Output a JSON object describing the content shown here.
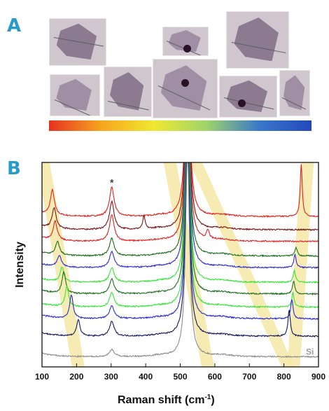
{
  "colors": {
    "panel_letter": "#2a9bc6",
    "substrate": "#cfc6ce",
    "flake": "#a08fa4",
    "flake_dark": "#8c7a91",
    "highlight_band": "#f5e9a6",
    "color_bar_stops": [
      "#e53222",
      "#f7a51e",
      "#efe82f",
      "#9fd36a",
      "#3a78c9",
      "#2448bb"
    ]
  },
  "panel_a": {
    "letter": "A"
  },
  "panel_b": {
    "letter": "B"
  },
  "chart_data": {
    "type": "line",
    "xlabel": "Raman shift (cm",
    "xlabel_sup": "-1",
    "xlabel_close": ")",
    "ylabel": "Intensity",
    "xlim": [
      100,
      900
    ],
    "ylim": [
      0,
      14
    ],
    "x_ticks": [
      "100",
      "200",
      "300",
      "400",
      "500",
      "600",
      "700",
      "800",
      "900"
    ],
    "annotations": [
      {
        "text": "*",
        "x": 302,
        "y": 12.1
      },
      {
        "text": "Si",
        "x": 875,
        "y": 0.55
      }
    ],
    "highlight_bands": [
      {
        "x_top": 104,
        "x_bottom": 205
      },
      {
        "x_top": 470,
        "x_bottom": 580
      },
      {
        "x_top": 545,
        "x_bottom": 812
      },
      {
        "x_top": 868,
        "x_bottom": 828
      }
    ],
    "series": [
      {
        "color": "#e61e1e",
        "baseline": 10.0,
        "peaks": [
          [
            130,
            1.7,
            7
          ],
          [
            302,
            2.0,
            8
          ],
          [
            850,
            3.6,
            3.5
          ]
        ]
      },
      {
        "color": "#7a1212",
        "baseline": 9.1,
        "peaks": [
          [
            135,
            1.4,
            7
          ],
          [
            302,
            1.9,
            8
          ],
          [
            395,
            0.9,
            4
          ]
        ]
      },
      {
        "color": "#e61e1e",
        "baseline": 8.3,
        "peaks": [
          [
            138,
            1.3,
            7
          ],
          [
            302,
            1.8,
            8
          ],
          [
            580,
            0.6,
            5
          ]
        ]
      },
      {
        "color": "#1d6e1d",
        "baseline": 7.3,
        "peaks": [
          [
            145,
            0.9,
            7
          ],
          [
            302,
            1.2,
            8
          ],
          [
            835,
            0.6,
            4
          ]
        ]
      },
      {
        "color": "#2b2bd6",
        "baseline": 6.5,
        "peaks": [
          [
            150,
            0.8,
            7
          ],
          [
            302,
            1.1,
            8
          ],
          [
            832,
            0.9,
            4
          ]
        ]
      },
      {
        "color": "#35e635",
        "baseline": 5.5,
        "peaks": [
          [
            158,
            1.0,
            6
          ],
          [
            302,
            1.0,
            8
          ],
          [
            830,
            0.8,
            4
          ]
        ]
      },
      {
        "color": "#1d6e1d",
        "baseline": 4.7,
        "peaks": [
          [
            163,
            1.5,
            6
          ],
          [
            302,
            1.0,
            8
          ],
          [
            828,
            0.9,
            4
          ]
        ]
      },
      {
        "color": "#35e635",
        "baseline": 3.8,
        "peaks": [
          [
            172,
            1.4,
            6
          ],
          [
            302,
            1.0,
            8
          ],
          [
            826,
            1.0,
            4
          ]
        ]
      },
      {
        "color": "#2b2bd6",
        "baseline": 3.0,
        "peaks": [
          [
            185,
            1.6,
            6
          ],
          [
            302,
            0.9,
            8
          ],
          [
            823,
            1.3,
            4
          ]
        ]
      },
      {
        "color": "#16165e",
        "baseline": 1.8,
        "peaks": [
          [
            205,
            1.1,
            6
          ],
          [
            302,
            1.0,
            8
          ],
          [
            815,
            1.8,
            4
          ]
        ]
      },
      {
        "color": "#8c8c8c",
        "baseline": 0.4,
        "peaks": [
          [
            302,
            0.5,
            8
          ]
        ]
      }
    ],
    "si_peak": {
      "x": 521,
      "height": 14,
      "width": 7
    }
  }
}
